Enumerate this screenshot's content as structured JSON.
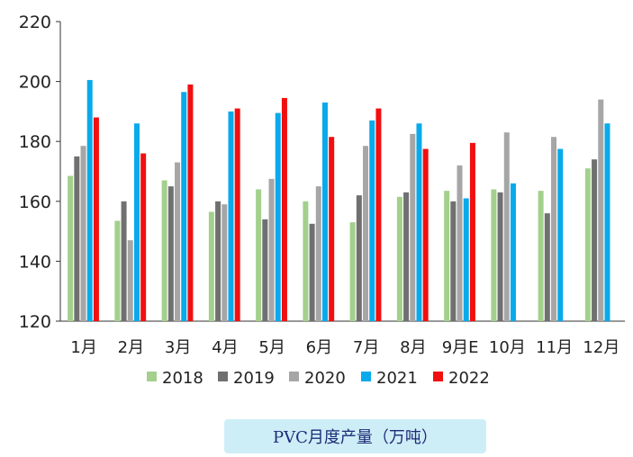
{
  "chart_data": {
    "type": "bar",
    "categories": [
      "1月",
      "2月",
      "3月",
      "4月",
      "5月",
      "6月",
      "7月",
      "8月",
      "9月E",
      "10月",
      "11月",
      "12月"
    ],
    "series": [
      {
        "name": "2018",
        "color": "#a3d08c",
        "values": [
          168.5,
          153.5,
          167,
          156.5,
          164,
          160,
          153,
          161.5,
          163.5,
          164,
          163.5,
          171
        ]
      },
      {
        "name": "2019",
        "color": "#707070",
        "values": [
          175,
          160,
          165,
          160,
          154,
          152.5,
          162,
          163,
          160,
          163,
          156,
          174
        ]
      },
      {
        "name": "2020",
        "color": "#a6a6a6",
        "values": [
          178.5,
          147,
          173,
          159,
          167.5,
          165,
          178.5,
          182.5,
          172,
          183,
          181.5,
          194
        ]
      },
      {
        "name": "2021",
        "color": "#09aaeb",
        "values": [
          200.5,
          186,
          196.5,
          190,
          189.5,
          193,
          187,
          186,
          161,
          166,
          177.5,
          186
        ]
      },
      {
        "name": "2022",
        "color": "#f10f0f",
        "values": [
          188,
          176,
          199,
          191,
          194.5,
          181.5,
          191,
          177.5,
          179.5,
          null,
          null,
          null
        ]
      }
    ],
    "ylim": [
      120,
      220
    ],
    "yticks": [
      120,
      140,
      160,
      180,
      200,
      220
    ],
    "legend_position": "bottom",
    "grid": false
  },
  "caption": "PVC月度产量（万吨）"
}
